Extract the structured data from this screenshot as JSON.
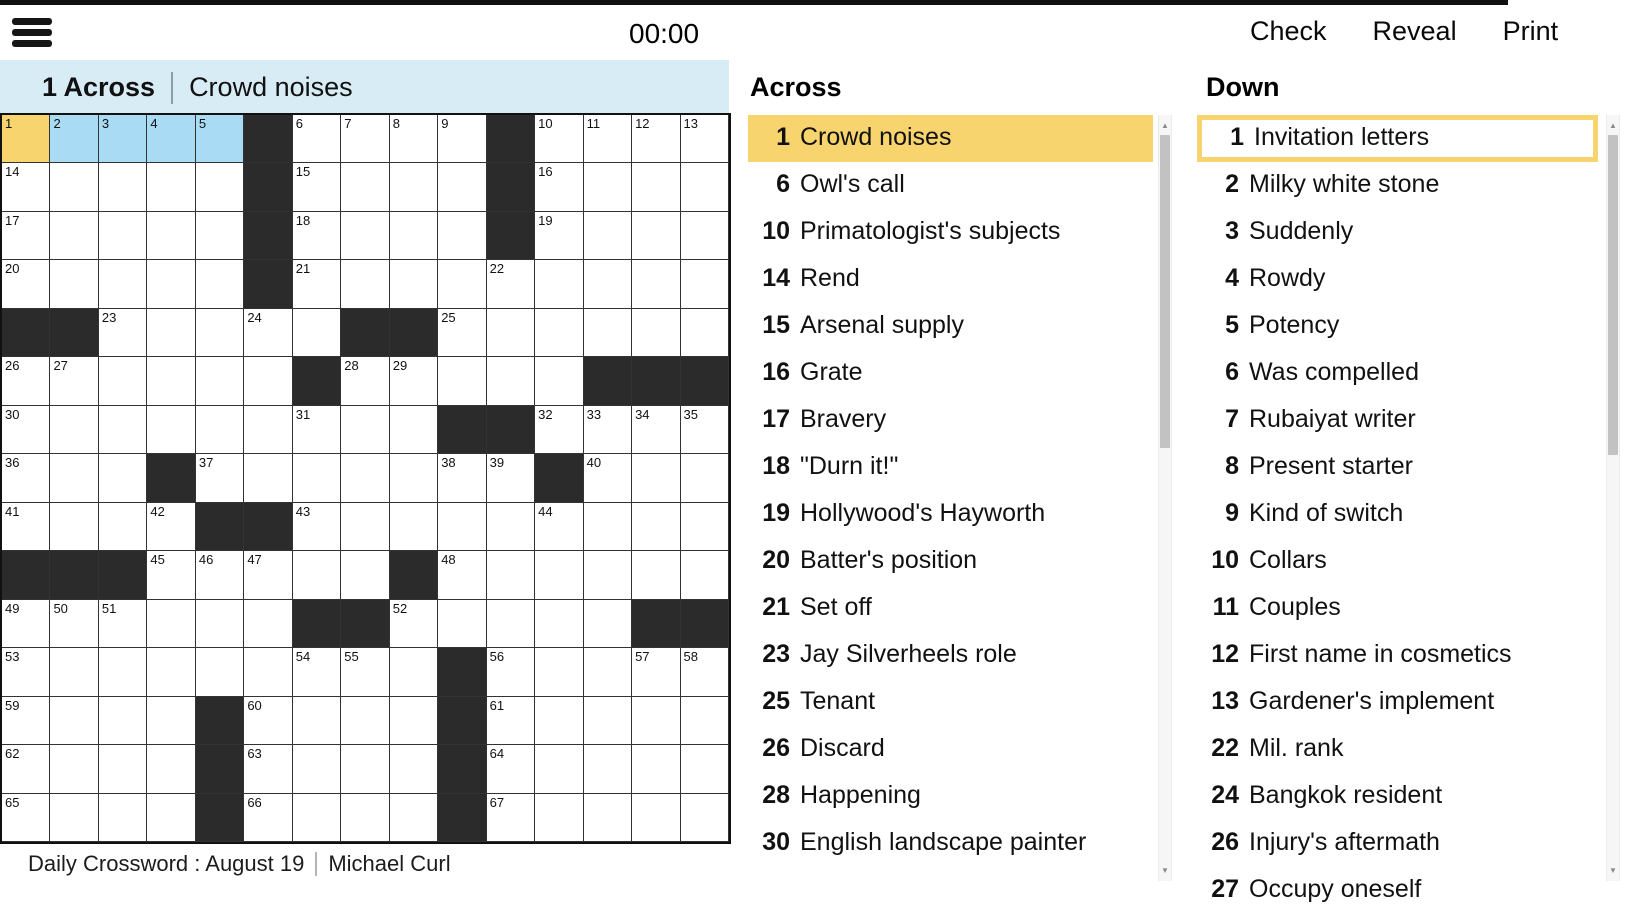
{
  "top_bar": {
    "menu_icon": "hamburger-icon",
    "timer": "00:00",
    "buttons": [
      {
        "label": "Check"
      },
      {
        "label": "Reveal"
      },
      {
        "label": "Print"
      }
    ]
  },
  "clue_bar": {
    "position_label": "1 Across",
    "clue_text": "Crowd noises"
  },
  "grid": {
    "rows": 15,
    "cols": 15,
    "colors": {
      "black_cell": "#2b2b2b",
      "selected_cell": "#f8d46e",
      "selected_word": "#a9dcf4",
      "grid_line": "#333333"
    },
    "cells": [
      [
        1,
        2,
        3,
        4,
        5,
        "#",
        6,
        7,
        8,
        9,
        "#",
        10,
        11,
        12,
        13
      ],
      [
        14,
        0,
        0,
        0,
        0,
        "#",
        15,
        0,
        0,
        0,
        "#",
        16,
        0,
        0,
        0
      ],
      [
        17,
        0,
        0,
        0,
        0,
        "#",
        18,
        0,
        0,
        0,
        "#",
        19,
        0,
        0,
        0
      ],
      [
        20,
        0,
        0,
        0,
        0,
        "#",
        21,
        0,
        0,
        0,
        22,
        0,
        0,
        0,
        0
      ],
      [
        "#",
        "#",
        23,
        0,
        0,
        24,
        0,
        "#",
        "#",
        25,
        0,
        0,
        0,
        0,
        0
      ],
      [
        26,
        27,
        0,
        0,
        0,
        0,
        "#",
        28,
        29,
        0,
        0,
        0,
        "#",
        "#",
        "#"
      ],
      [
        30,
        0,
        0,
        0,
        0,
        0,
        31,
        0,
        0,
        "#",
        "#",
        32,
        33,
        34,
        35
      ],
      [
        36,
        0,
        0,
        "#",
        37,
        0,
        0,
        0,
        0,
        38,
        39,
        "#",
        40,
        0,
        0
      ],
      [
        41,
        0,
        0,
        42,
        "#",
        "#",
        43,
        0,
        0,
        0,
        0,
        44,
        0,
        0,
        0
      ],
      [
        "#",
        "#",
        "#",
        45,
        46,
        47,
        0,
        0,
        "#",
        48,
        0,
        0,
        0,
        0,
        0
      ],
      [
        49,
        50,
        51,
        0,
        0,
        0,
        "#",
        "#",
        52,
        0,
        0,
        0,
        0,
        "#",
        "#"
      ],
      [
        53,
        0,
        0,
        0,
        0,
        0,
        54,
        55,
        0,
        "#",
        56,
        0,
        0,
        57,
        58
      ],
      [
        59,
        0,
        0,
        0,
        "#",
        60,
        0,
        0,
        0,
        "#",
        61,
        0,
        0,
        0,
        0
      ],
      [
        62,
        0,
        0,
        0,
        "#",
        63,
        0,
        0,
        0,
        "#",
        64,
        0,
        0,
        0,
        0
      ],
      [
        65,
        0,
        0,
        0,
        "#",
        66,
        0,
        0,
        0,
        "#",
        67,
        0,
        0,
        0,
        0
      ]
    ],
    "selection": {
      "cell": [
        0,
        0
      ],
      "word_cells": [
        [
          0,
          1
        ],
        [
          0,
          2
        ],
        [
          0,
          3
        ],
        [
          0,
          4
        ]
      ]
    }
  },
  "across_panel": {
    "header": "Across",
    "clues": [
      {
        "num": "1",
        "text": "Crowd noises",
        "selected": "highlight"
      },
      {
        "num": "6",
        "text": "Owl's call"
      },
      {
        "num": "10",
        "text": "Primatologist's subjects"
      },
      {
        "num": "14",
        "text": "Rend"
      },
      {
        "num": "15",
        "text": "Arsenal supply"
      },
      {
        "num": "16",
        "text": "Grate"
      },
      {
        "num": "17",
        "text": "Bravery"
      },
      {
        "num": "18",
        "text": "\"Durn it!\""
      },
      {
        "num": "19",
        "text": "Hollywood's Hayworth"
      },
      {
        "num": "20",
        "text": "Batter's position"
      },
      {
        "num": "21",
        "text": "Set off"
      },
      {
        "num": "23",
        "text": "Jay Silverheels role"
      },
      {
        "num": "25",
        "text": "Tenant"
      },
      {
        "num": "26",
        "text": "Discard"
      },
      {
        "num": "28",
        "text": "Happening"
      },
      {
        "num": "30",
        "text": "English landscape painter",
        "two_line": true
      }
    ]
  },
  "down_panel": {
    "header": "Down",
    "clues": [
      {
        "num": "1",
        "text": "Invitation letters",
        "selected": "outline"
      },
      {
        "num": "2",
        "text": "Milky white stone"
      },
      {
        "num": "3",
        "text": "Suddenly"
      },
      {
        "num": "4",
        "text": "Rowdy"
      },
      {
        "num": "5",
        "text": "Potency"
      },
      {
        "num": "6",
        "text": "Was compelled"
      },
      {
        "num": "7",
        "text": "Rubaiyat writer"
      },
      {
        "num": "8",
        "text": "Present starter"
      },
      {
        "num": "9",
        "text": "Kind of switch"
      },
      {
        "num": "10",
        "text": "Collars"
      },
      {
        "num": "11",
        "text": "Couples"
      },
      {
        "num": "12",
        "text": "First name in cosmetics"
      },
      {
        "num": "13",
        "text": "Gardener's implement"
      },
      {
        "num": "22",
        "text": "Mil. rank"
      },
      {
        "num": "24",
        "text": "Bangkok resident"
      },
      {
        "num": "26",
        "text": "Injury's aftermath"
      },
      {
        "num": "27",
        "text": "Occupy oneself",
        "clipped": true
      }
    ]
  },
  "scrollbars": {
    "up_arrow": "▲",
    "down_arrow": "▼"
  },
  "footer": {
    "title": "Daily Crossword : August 19",
    "author": "Michael Curl"
  }
}
